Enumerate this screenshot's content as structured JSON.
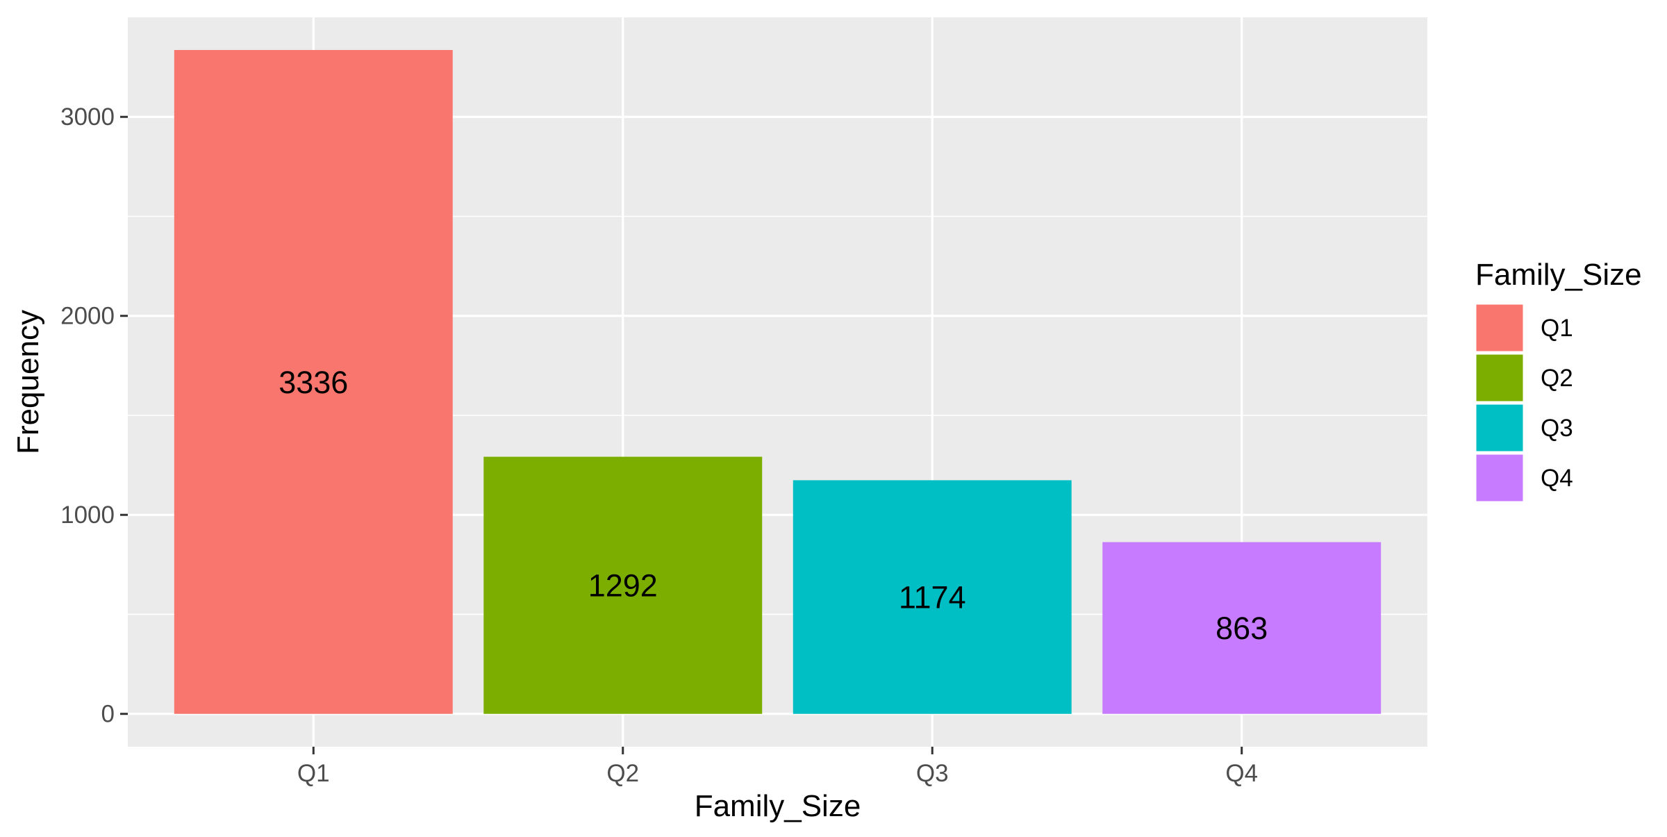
{
  "chart_data": {
    "type": "bar",
    "categories": [
      "Q1",
      "Q2",
      "Q3",
      "Q4"
    ],
    "values": [
      3336,
      1292,
      1174,
      863
    ],
    "data_labels": [
      "3336",
      "1292",
      "1174",
      "863"
    ],
    "xlabel": "Family_Size",
    "ylabel": "Frequency",
    "ylim": [
      -165,
      3500
    ],
    "yticks": [
      0,
      1000,
      2000,
      3000
    ],
    "ytick_labels": [
      "0",
      "1000",
      "2000",
      "3000"
    ],
    "grid": true,
    "legend": {
      "title": "Family_Size",
      "placement": "right",
      "entries": [
        "Q1",
        "Q2",
        "Q3",
        "Q4"
      ]
    },
    "colors": [
      "#F8766D",
      "#7CAE00",
      "#00BFC4",
      "#C77CFF"
    ],
    "panel_background": "#EBEBEB",
    "grid_color": "#FFFFFF"
  }
}
